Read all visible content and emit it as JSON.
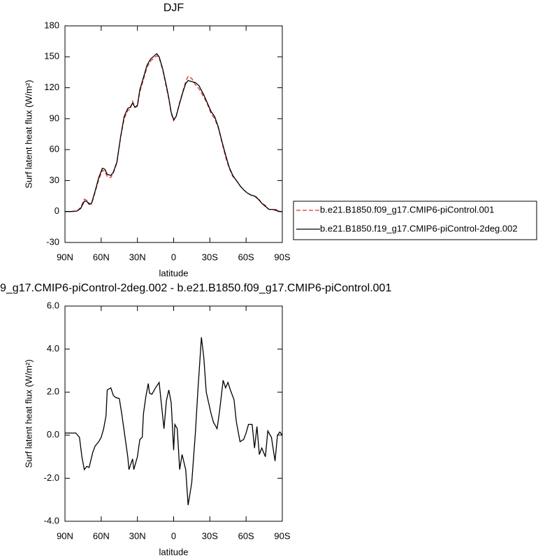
{
  "chart_data": [
    {
      "type": "line",
      "title": "DJF",
      "xlabel": "latitude",
      "ylabel": "Surf latent heat flux (W/m²)",
      "xlim": [
        90,
        -90
      ],
      "xticks": [
        {
          "value": 90,
          "label": "90N"
        },
        {
          "value": 60,
          "label": "60N"
        },
        {
          "value": 30,
          "label": "30N"
        },
        0,
        {
          "value": -30,
          "label": "30S"
        },
        {
          "value": -60,
          "label": "60S"
        },
        {
          "value": -90,
          "label": "90S"
        }
      ],
      "ylim": [
        -30,
        180
      ],
      "yticks": [
        -30,
        0,
        30,
        60,
        90,
        120,
        150,
        180
      ],
      "legend": "outside-right",
      "x": [
        90,
        85,
        80,
        77,
        74,
        72,
        70,
        68,
        65,
        62,
        59,
        57,
        55,
        52,
        50,
        47,
        44,
        41,
        38,
        36,
        34,
        32,
        30,
        28,
        25,
        22,
        19,
        16,
        14,
        12,
        9,
        6,
        4,
        2,
        0,
        -2,
        -5,
        -8,
        -10,
        -12,
        -15,
        -18,
        -21,
        -25,
        -28,
        -31,
        -34,
        -37,
        -40,
        -43,
        -46,
        -49,
        -52,
        -55,
        -58,
        -61,
        -64,
        -67,
        -70,
        -73,
        -76,
        -79,
        -82,
        -85,
        -88,
        -90
      ],
      "series": [
        {
          "name": "b.e21.B1850.f09_g17.CMIP6-piControl.001",
          "color": "#e0302a",
          "dash": true,
          "values": [
            0,
            0,
            0.5,
            4,
            12,
            11,
            8,
            7,
            19,
            31,
            40,
            39,
            34,
            33,
            37,
            47,
            71,
            90,
            98,
            99,
            107,
            101,
            102,
            116,
            128,
            140,
            146,
            149,
            151,
            149,
            137,
            120,
            109,
            95,
            88,
            92,
            106,
            118,
            126,
            131,
            129,
            123,
            119,
            111,
            104,
            95,
            90,
            81,
            67,
            53,
            42,
            34,
            30,
            25,
            21,
            18,
            16,
            15,
            13,
            8,
            6,
            2,
            2,
            2,
            0,
            0
          ]
        },
        {
          "name": "b.e21.B1850.f19_g17.CMIP6-piControl-2deg.002",
          "color": "#000000",
          "dash": false,
          "values": [
            0,
            0,
            0.5,
            3,
            10,
            10,
            7,
            8,
            20,
            33,
            42,
            41,
            36,
            35,
            38,
            48,
            72,
            92,
            100,
            101,
            105,
            101,
            103,
            118,
            130,
            142,
            148,
            151,
            153,
            150,
            138,
            122,
            110,
            96,
            89,
            92,
            105,
            117,
            124,
            127,
            126,
            125,
            122,
            113,
            105,
            97,
            92,
            82,
            68,
            55,
            43,
            35,
            30,
            25,
            21,
            18,
            16,
            15,
            12,
            8,
            5,
            2,
            2,
            1,
            0,
            0
          ]
        }
      ]
    },
    {
      "type": "line",
      "title": "9_g17.CMIP6-piControl-2deg.002 - b.e21.B1850.f09_g17.CMIP6-piControl.001",
      "xlabel": "latitude",
      "ylabel": "Surf latent heat flux (W/m²)",
      "xlim": [
        90,
        -90
      ],
      "xticks": [
        {
          "value": 90,
          "label": "90N"
        },
        {
          "value": 60,
          "label": "60N"
        },
        {
          "value": 30,
          "label": "30N"
        },
        0,
        {
          "value": -30,
          "label": "30S"
        },
        {
          "value": -60,
          "label": "60S"
        },
        {
          "value": -90,
          "label": "90S"
        }
      ],
      "ylim": [
        -4,
        6
      ],
      "yticks": [
        {
          "value": -4,
          "label": "-4.0"
        },
        {
          "value": -2,
          "label": "-2.0"
        },
        {
          "value": 0,
          "label": "0.0"
        },
        {
          "value": 2,
          "label": "2.0"
        },
        {
          "value": 4,
          "label": "4.0"
        },
        {
          "value": 6,
          "label": "6.0"
        }
      ],
      "color": "#000000",
      "x": [
        90,
        81,
        78,
        76,
        74,
        72,
        70,
        67,
        65,
        62,
        60,
        58,
        56,
        55,
        52,
        50,
        48,
        45,
        43,
        41,
        38,
        37,
        34,
        33,
        30,
        28,
        26,
        25,
        23,
        21,
        20,
        18,
        15,
        12,
        8,
        6,
        4,
        2,
        0,
        -1,
        -3,
        -5,
        -7,
        -10,
        -12,
        -15,
        -18,
        -20,
        -23,
        -25,
        -27,
        -31,
        -33,
        -36,
        -38,
        -41,
        -43,
        -45,
        -47,
        -50,
        -52,
        -55,
        -58,
        -60,
        -62,
        -65,
        -67,
        -69,
        -71,
        -73,
        -76,
        -78,
        -81,
        -84,
        -86,
        -88,
        -90
      ],
      "values": [
        0.1,
        0.1,
        -0.1,
        -1,
        -1.6,
        -1.45,
        -1.5,
        -0.8,
        -0.5,
        -0.3,
        -0.1,
        0.3,
        0.9,
        2.1,
        2.2,
        1.85,
        1.75,
        1.7,
        1,
        0.2,
        -1,
        -1.6,
        -1.1,
        -1.6,
        -1,
        -0.2,
        -0.1,
        1,
        1.8,
        2.4,
        1.95,
        1.9,
        2.2,
        2.45,
        0.3,
        1.6,
        2.1,
        1.5,
        -0.7,
        0.5,
        0.3,
        -1.6,
        -0.9,
        -1.6,
        -3.25,
        -2.2,
        0.1,
        2,
        4.55,
        3.6,
        2,
        1,
        0.6,
        0.3,
        1.1,
        2.55,
        2.2,
        2.45,
        2.1,
        1.65,
        0.6,
        -0.3,
        -0.2,
        0.1,
        0.5,
        0.5,
        -0.6,
        0.4,
        -0.9,
        -0.6,
        -1,
        0.2,
        -0.1,
        -1.2,
        0,
        0.15,
        0
      ]
    }
  ]
}
